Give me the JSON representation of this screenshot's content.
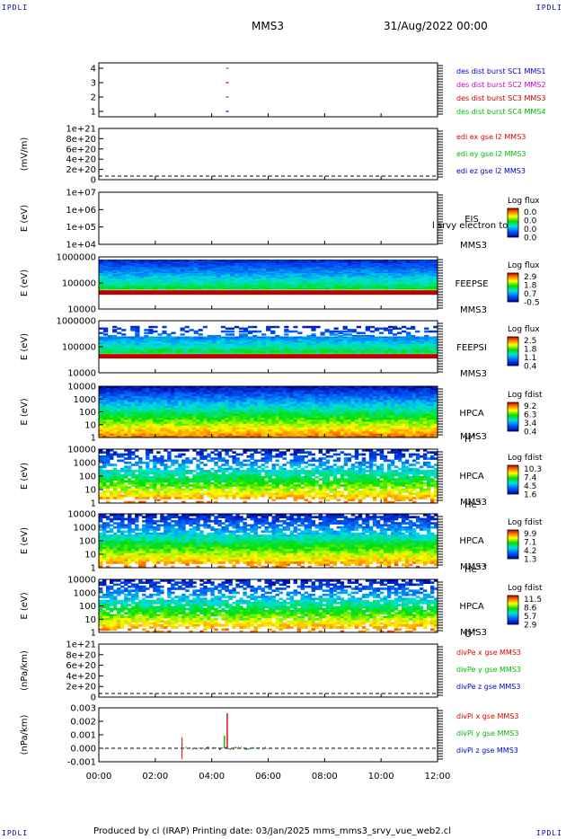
{
  "corners": {
    "tl": "IPDLI",
    "tr": "IPDLI",
    "bl": "IPDLI",
    "br": "IPDLI"
  },
  "header": {
    "spacecraft": "MMS3",
    "date": "31/Aug/2022 00:00"
  },
  "footer": {
    "text": "Produced by cl (IRAP)   Printing date: 03/Jan/2025   mms_mms3_srvy_vue_web2.cl"
  },
  "colors": {
    "sc1": "#0000cc",
    "sc2": "#cc00cc",
    "sc3": "#cc0000",
    "sc4": "#00bb00",
    "red": "#dd0000",
    "green": "#00bb00",
    "blue": "#0000cc"
  },
  "chart_data": {
    "type": "stacked-panels",
    "x_ticks": [
      "00:00",
      "02:00",
      "04:00",
      "06:00",
      "08:00",
      "10:00",
      "12:00"
    ],
    "panels": [
      {
        "id": "burst",
        "type": "line",
        "ylabel": "",
        "yticks": [
          "4",
          "3",
          "2",
          "1"
        ],
        "legend": [
          {
            "text": "des dist burst SC1 MMS1",
            "color": "#0000cc"
          },
          {
            "text": "des dist burst SC2 MMS2",
            "color": "#cc00cc"
          },
          {
            "text": "des dist burst SC3 MMS3",
            "color": "#cc0000"
          },
          {
            "text": "des dist burst SC4 MMS4",
            "color": "#00bb00"
          }
        ]
      },
      {
        "id": "edi",
        "type": "line",
        "ylabel": "(mV/m)",
        "yticks": [
          "1e+21",
          "8e+20",
          "6e+20",
          "4e+20",
          "2e+20",
          "0"
        ],
        "legend": [
          {
            "text": "edi ex gse l2 MMS3",
            "color": "#dd0000"
          },
          {
            "text": "edi ey gse l2 MMS3",
            "color": "#00bb00"
          },
          {
            "text": "edi ez gse l2 MMS3",
            "color": "#0000cc"
          }
        ]
      },
      {
        "id": "eis",
        "type": "heatmap",
        "ylabel": "E (eV)",
        "yticks": [
          "1e+07",
          "1e+06",
          "1e+05",
          "1e+04"
        ],
        "side": [
          "EIS",
          "MMS3"
        ],
        "overlay": "l srvy electron to",
        "cbar_title": "Log flux",
        "cbar_ticks": [
          "0.0",
          "0.0",
          "0.0",
          "0.0"
        ]
      },
      {
        "id": "feepse",
        "type": "heatmap",
        "ylabel": "E (eV)",
        "yticks": [
          "1000000",
          "100000",
          "10000"
        ],
        "side": [
          "FEEPSE",
          "MMS3"
        ],
        "cbar_title": "Log flux",
        "cbar_ticks": [
          "2.9",
          "1.8",
          "0.7",
          "-0.5"
        ]
      },
      {
        "id": "feepsi",
        "type": "heatmap",
        "ylabel": "E (eV)",
        "yticks": [
          "1000000",
          "100000",
          "10000"
        ],
        "side": [
          "FEEPSI",
          "MMS3"
        ],
        "cbar_title": "Log flux",
        "cbar_ticks": [
          "2.5",
          "1.8",
          "1.1",
          "0.4"
        ]
      },
      {
        "id": "hpca_h",
        "type": "heatmap",
        "ylabel": "E (eV)",
        "yticks": [
          "10000",
          "1000",
          "100",
          "10",
          "1"
        ],
        "side": [
          "HPCA",
          "MMS3"
        ],
        "species": "H",
        "species_sup": "+",
        "cbar_title": "Log fdist",
        "cbar_ticks": [
          "9.2",
          "6.3",
          "3.4",
          "0.4"
        ]
      },
      {
        "id": "hpca_he",
        "type": "heatmap",
        "ylabel": "E (eV)",
        "yticks": [
          "10000",
          "1000",
          "100",
          "10",
          "1"
        ],
        "side": [
          "HPCA",
          "MMS3"
        ],
        "species": "He",
        "species_sup": "+",
        "cbar_title": "Log fdist",
        "cbar_ticks": [
          "10.3",
          "7.4",
          "4.5",
          "1.6"
        ]
      },
      {
        "id": "hpca_hepp",
        "type": "heatmap",
        "ylabel": "E (eV)",
        "yticks": [
          "10000",
          "1000",
          "100",
          "10",
          "1"
        ],
        "side": [
          "HPCA",
          "MMS3"
        ],
        "species": "He",
        "species_sup": "++",
        "cbar_title": "Log fdist",
        "cbar_ticks": [
          "9.9",
          "7.1",
          "4.2",
          "1.3"
        ]
      },
      {
        "id": "hpca_o",
        "type": "heatmap",
        "ylabel": "E (eV)",
        "yticks": [
          "10000",
          "1000",
          "100",
          "10",
          "1"
        ],
        "side": [
          "HPCA",
          "MMS3"
        ],
        "species": "O",
        "species_sup": "+",
        "cbar_title": "Log fdist",
        "cbar_ticks": [
          "11.5",
          "8.6",
          "5.7",
          "2.9"
        ]
      },
      {
        "id": "divpe",
        "type": "line",
        "ylabel": "(nPa/km)",
        "yticks": [
          "1e+21",
          "8e+20",
          "6e+20",
          "4e+20",
          "2e+20",
          "0"
        ],
        "legend": [
          {
            "text": "divPe x gse MMS3",
            "color": "#dd0000"
          },
          {
            "text": "divPe y gse MMS3",
            "color": "#00bb00"
          },
          {
            "text": "divPe z gse MMS3",
            "color": "#0000cc"
          }
        ]
      },
      {
        "id": "divpi",
        "type": "line",
        "ylabel": "(nPa/km)",
        "yticks": [
          "0.003",
          "0.002",
          "0.001",
          "0.000",
          "-0.001"
        ],
        "legend": [
          {
            "text": "divPi x gse MMS3",
            "color": "#dd0000"
          },
          {
            "text": "divPi y gse MMS3",
            "color": "#00bb00"
          },
          {
            "text": "divPi z gse MMS3",
            "color": "#0000cc"
          }
        ]
      }
    ]
  }
}
